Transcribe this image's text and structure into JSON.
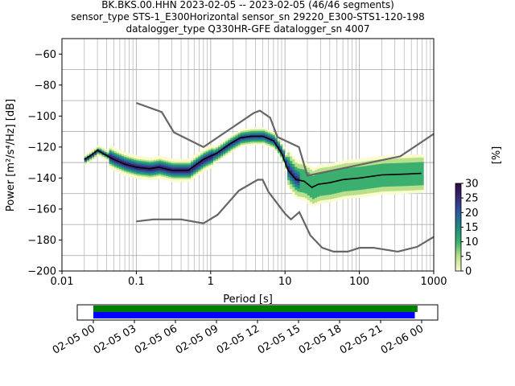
{
  "figure": {
    "title_lines": [
      "BK.BKS.00.HHN   2023-02-05 -- 2023-02-05  (46/46 segments)",
      "sensor_type STS-1_E300Horizontal sensor_sn 29220_E300-STS1-120-198",
      "datalogger_type Q330HR-GFE datalogger_sn 4007"
    ]
  },
  "chart_data": [
    {
      "type": "heatmap",
      "title": "BK.BKS.00.HHN   2023-02-05 -- 2023-02-05  (46/46 segments)",
      "xlabel": "Period [s]",
      "ylabel": "Power [m²/s⁴/Hz] [dB]",
      "xscale": "log",
      "xlim": [
        0.01,
        1000
      ],
      "ylim": [
        -200,
        -50
      ],
      "grid": true,
      "x_ticks": [
        "0.01",
        "0.1",
        "1",
        "10",
        "100",
        "1000"
      ],
      "y_ticks": [
        "−60",
        "−80",
        "−100",
        "−120",
        "−140",
        "−160",
        "−180",
        "−200"
      ],
      "colorbar": {
        "label": "[%]",
        "range": [
          0,
          30
        ],
        "ticks": [
          "0",
          "5",
          "10",
          "15",
          "20",
          "25",
          "30"
        ],
        "colors": [
          "#fbfbd0",
          "#b8e08a",
          "#3aaf6f",
          "#1f8a80",
          "#2b5aa0",
          "#3a2a7a",
          "#2a0a40"
        ]
      },
      "series": [
        {
          "role": "noise model upper",
          "color": "#666666",
          "x": [
            0.1,
            0.22,
            0.32,
            0.8,
            3.8,
            4.6,
            6.3,
            7.9,
            15.4,
            20,
            354.8,
            1000
          ],
          "y": [
            -91.5,
            -97.4,
            -110.5,
            -120,
            -98,
            -96.5,
            -101,
            -113.5,
            -120,
            -138.5,
            -126,
            -111.5
          ]
        },
        {
          "role": "noise model lower",
          "color": "#666666",
          "x": [
            0.1,
            0.17,
            0.4,
            0.8,
            1.24,
            2.4,
            4.3,
            5,
            6,
            10,
            12,
            15.6,
            21.9,
            31.6,
            45,
            70,
            101,
            154,
            328,
            600,
            1000
          ],
          "y": [
            -168,
            -166.7,
            -166.7,
            -169.2,
            -163.7,
            -148.1,
            -141.1,
            -141.1,
            -149,
            -163,
            -166.7,
            -162,
            -177,
            -185,
            -187.5,
            -187.5,
            -185,
            -185,
            -187.5,
            -184.4,
            -178
          ]
        },
        {
          "role": "mode",
          "color": "#000000",
          "x": [
            0.02,
            0.025,
            0.03,
            0.035,
            0.05,
            0.07,
            0.1,
            0.15,
            0.2,
            0.3,
            0.5,
            0.8,
            1.2,
            1.8,
            2.5,
            3.5,
            5,
            7,
            9,
            11,
            14,
            18,
            23,
            28,
            40,
            60,
            100,
            200,
            400,
            680
          ],
          "y": [
            -128,
            -125,
            -122,
            -124,
            -128,
            -131,
            -133,
            -134,
            -133,
            -135,
            -135,
            -128,
            -124,
            -118,
            -114,
            -113,
            -113,
            -116,
            -124,
            -135,
            -141,
            -142,
            -146,
            -144,
            -143,
            -141,
            -140,
            -138,
            -137.5,
            -137
          ]
        }
      ]
    },
    {
      "type": "bar",
      "role": "data coverage",
      "x_ticks": [
        "02-05 00",
        "02-05 03",
        "02-05 06",
        "02-05 09",
        "02-05 12",
        "02-05 15",
        "02-05 18",
        "02-05 21",
        "02-06 00"
      ],
      "series": [
        {
          "role": "coverage",
          "color": "#008000",
          "start_hour": 0,
          "end_hour": 23.7
        },
        {
          "role": "used data",
          "color": "#0000ff",
          "start_hour": 0,
          "end_hour": 23.5
        }
      ]
    }
  ]
}
